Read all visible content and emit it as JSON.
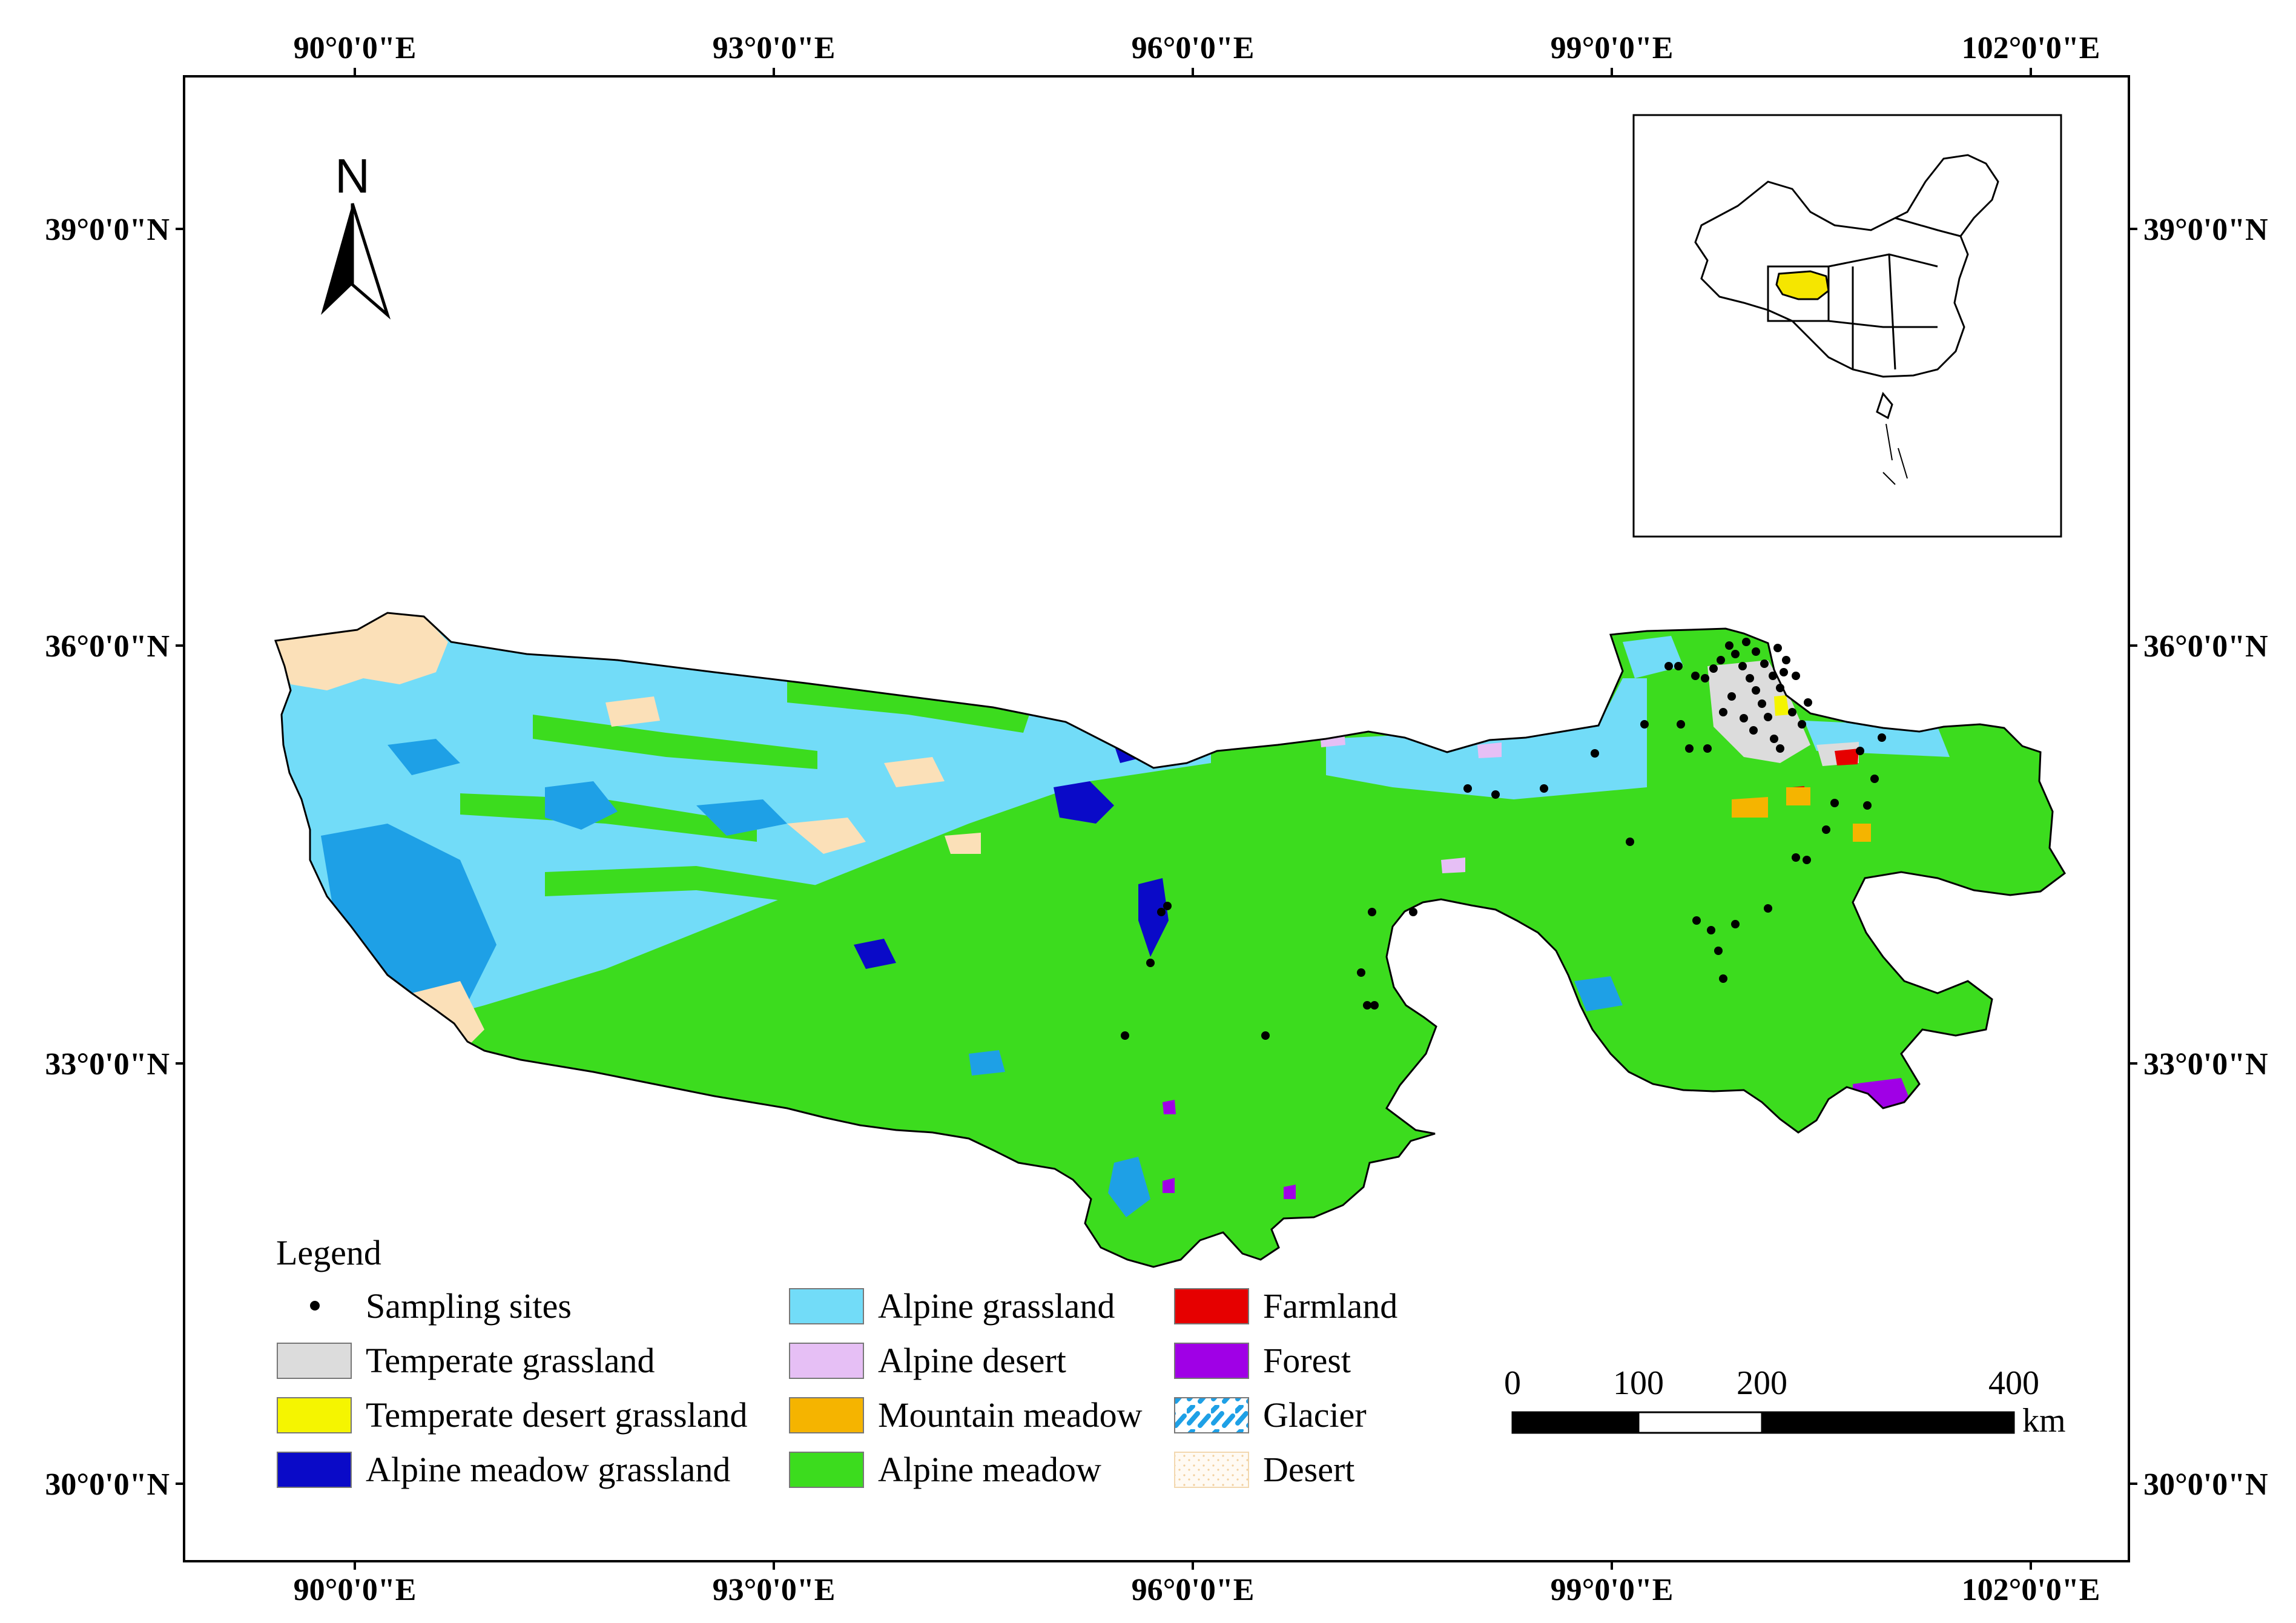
{
  "axes": {
    "top_labels": [
      "90°0'0\"E",
      "93°0'0\"E",
      "96°0'0\"E",
      "99°0'0\"E",
      "102°0'0\"E"
    ],
    "bottom_labels": [
      "90°0'0\"E",
      "93°0'0\"E",
      "96°0'0\"E",
      "99°0'0\"E",
      "102°0'0\"E"
    ],
    "left_labels": [
      "39°0'0\"N",
      "36°0'0\"N",
      "33°0'0\"N",
      "30°0'0\"N"
    ],
    "right_labels": [
      "39°0'0\"N",
      "36°0'0\"N",
      "33°0'0\"N",
      "30°0'0\"N"
    ]
  },
  "north_arrow": {
    "label": "N",
    "icon": "north-arrow-icon"
  },
  "inset": {
    "icon": "china-outline-icon",
    "highlight_color": "#f5e600"
  },
  "legend": {
    "title": "Legend",
    "items": [
      {
        "label": "Sampling sites",
        "color": "#000000",
        "kind": "dot"
      },
      {
        "label": "Temperate grassland",
        "color": "#dcdcdc",
        "kind": "box"
      },
      {
        "label": "Temperate desert grassland",
        "color": "#f5f500",
        "kind": "box"
      },
      {
        "label": "Alpine meadow grassland",
        "color": "#0a0ac8",
        "kind": "box"
      },
      {
        "label": "Alpine grassland",
        "color": "#72dcf8",
        "kind": "box"
      },
      {
        "label": "Alpine desert",
        "color": "#e6bff5",
        "kind": "box"
      },
      {
        "label": "Mountain meadow",
        "color": "#f5b400",
        "kind": "box"
      },
      {
        "label": "Alpine meadow",
        "color": "#3cdc1e",
        "kind": "box"
      },
      {
        "label": "Farmland",
        "color": "#e60000",
        "kind": "box"
      },
      {
        "label": "Forest",
        "color": "#a000e6",
        "kind": "box"
      },
      {
        "label": "Glacier",
        "color": "#1ea0e6",
        "kind": "pattern"
      },
      {
        "label": "Desert",
        "color": "#fbe6c8",
        "kind": "stipple"
      }
    ]
  },
  "scale_bar": {
    "ticks": [
      "0",
      "100",
      "200",
      "400"
    ],
    "tick_values": [
      0,
      100,
      200,
      400
    ],
    "unit": "km"
  },
  "colors": {
    "alpine_meadow": "#3cdc1e",
    "alpine_grassland": "#72dcf8",
    "glacier_blue": "#1ea0e6",
    "desert": "#fbe0b8",
    "alpine_meadow_grassland": "#0a0ac8",
    "temperate_grassland": "#dcdcdc",
    "farmland": "#e60000",
    "forest": "#a000e6",
    "mountain_meadow": "#f5b400",
    "alpine_desert": "#e6bff5"
  }
}
